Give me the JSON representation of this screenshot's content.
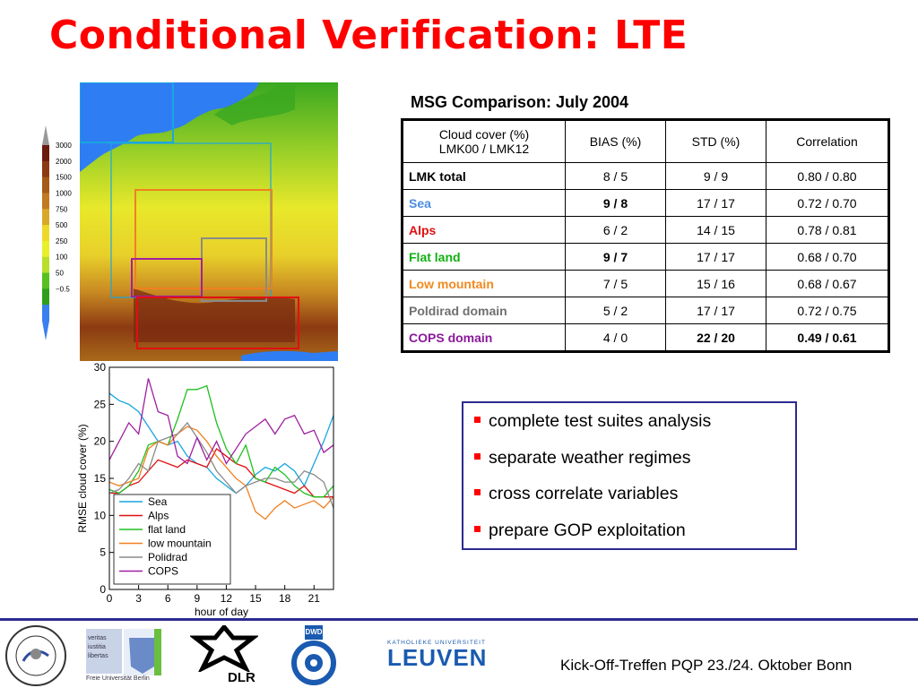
{
  "slide": {
    "title": "Conditional Verification: LTE"
  },
  "map": {
    "colorbar_labels": [
      "3000",
      "2000",
      "1500",
      "1000",
      "750",
      "500",
      "250",
      "100",
      "50",
      "−0.5"
    ],
    "colorbar_colors": [
      "#6b1a10",
      "#8b3a12",
      "#a55a15",
      "#c07a20",
      "#d8a82a",
      "#eed92b",
      "#e8f02a",
      "#b8e02a",
      "#58c020",
      "#2f9e1a",
      "#3a7ff0"
    ],
    "domain_colors": {
      "sea": "#19a6e0",
      "flat_land": "#20b020",
      "low_mountain": "#f08020",
      "poldirad": "#8a8a8a",
      "cops": "#a020a0",
      "alps": "#e01010"
    }
  },
  "table": {
    "title": "MSG Comparison: July 2004",
    "header": {
      "col0_line1": "Cloud cover (%)",
      "col0_line2": "LMK00 /  LMK12",
      "col1": "BIAS (%)",
      "col2": "STD (%)",
      "col3": "Correlation"
    },
    "rows": [
      {
        "name": "LMK total",
        "color": "#000000",
        "bias": "8 / 5",
        "std": "9 / 9",
        "corr": "0.80 / 0.80"
      },
      {
        "name": "Sea",
        "color": "#4a8de0",
        "bias": "9 / 8",
        "std": "17 / 17",
        "corr": "0.72 / 0.70"
      },
      {
        "name": "Alps",
        "color": "#e01010",
        "bias": "6 / 2",
        "std": "14 / 15",
        "corr": "0.78 / 0.81"
      },
      {
        "name": "Flat land",
        "color": "#10b010",
        "bias": "9 / 7",
        "std": "17 / 17",
        "corr": "0.68 / 0.70"
      },
      {
        "name": "Low mountain",
        "color": "#f08a20",
        "bias": "7 / 5",
        "std": "15 / 16",
        "corr": "0.68 / 0.67"
      },
      {
        "name": "Poldirad domain",
        "color": "#707070",
        "bias": "5 / 2",
        "std": "17 / 17",
        "corr": "0.72 / 0.75"
      },
      {
        "name": "COPS domain",
        "color": "#8a1a9a",
        "bias": "4 / 0",
        "std": "22 / 20",
        "corr": "0.49 / 0.61"
      }
    ]
  },
  "bullets": [
    "complete test suites analysis",
    "separate weather regimes",
    "cross correlate variables",
    "prepare GOP exploitation"
  ],
  "footer": {
    "text": "Kick-Off-Treffen PQP 23./24. Oktober Bonn",
    "logos": {
      "fu_line1": "veritas",
      "fu_line2": "iustitia",
      "fu_line3": "libertas",
      "fu_caption": "Freie Universität Berlin",
      "dlr": "DLR",
      "dwd": "DWD",
      "leuven_small": "KATHOLIEKE UNIVERSITEIT",
      "leuven": "LEUVEN"
    }
  },
  "chart_data": {
    "type": "line",
    "xlabel": "hour of day",
    "ylabel": "RMSE cloud cover (%)",
    "xlim": [
      0,
      23
    ],
    "ylim": [
      0,
      30
    ],
    "xticks": [
      0,
      3,
      6,
      9,
      12,
      15,
      18,
      21
    ],
    "yticks": [
      0,
      5,
      10,
      15,
      20,
      25,
      30
    ],
    "x": [
      0,
      1,
      2,
      3,
      4,
      5,
      6,
      7,
      8,
      9,
      10,
      11,
      12,
      13,
      14,
      15,
      16,
      17,
      18,
      19,
      20,
      21,
      22,
      23
    ],
    "series": [
      {
        "name": "Sea",
        "color": "#19a6e0",
        "values": [
          26.5,
          25.5,
          25,
          24,
          22,
          20,
          19.5,
          20,
          18,
          17,
          16.5,
          15,
          14,
          13,
          14,
          15.5,
          16.5,
          16,
          17,
          16,
          14,
          17,
          20,
          23.5
        ]
      },
      {
        "name": "Alps",
        "color": "#e01010",
        "values": [
          13,
          13,
          14,
          14.5,
          16,
          17.5,
          17,
          16.5,
          17.5,
          17,
          16.5,
          19,
          18,
          17,
          16.5,
          15,
          14.5,
          14,
          13.5,
          13,
          14,
          12.5,
          12.5,
          12.5
        ]
      },
      {
        "name": "flat land",
        "color": "#20c020",
        "values": [
          13.5,
          13,
          14,
          16,
          19.5,
          20,
          19.5,
          23,
          27,
          27,
          27.5,
          22.5,
          19,
          17,
          19.5,
          15,
          14.5,
          16.5,
          15.5,
          14,
          13,
          12.5,
          12.5,
          14
        ]
      },
      {
        "name": "low mountain",
        "color": "#f08020",
        "values": [
          14.5,
          14,
          14.5,
          15,
          19,
          20,
          19.5,
          21,
          22,
          21.5,
          20,
          18,
          16.5,
          15,
          14,
          10.5,
          9.5,
          11,
          12,
          11,
          11.5,
          12,
          11,
          12.5
        ]
      },
      {
        "name": "Polidrad",
        "color": "#8a8a8a",
        "values": [
          13,
          13.5,
          15,
          17,
          16,
          20,
          20.5,
          21,
          22.5,
          20.5,
          18.5,
          16,
          14.5,
          13,
          14,
          14.5,
          15,
          15,
          14.5,
          14.5,
          16,
          15.5,
          14.5,
          11
        ]
      },
      {
        "name": "COPS",
        "color": "#a020a0",
        "values": [
          17.5,
          20,
          22.5,
          21,
          28.5,
          24,
          23.5,
          18,
          17,
          20.5,
          17.5,
          20,
          17,
          19,
          21,
          22,
          23,
          21,
          23,
          23.5,
          21,
          21.5,
          18.5,
          19.5
        ]
      }
    ]
  }
}
